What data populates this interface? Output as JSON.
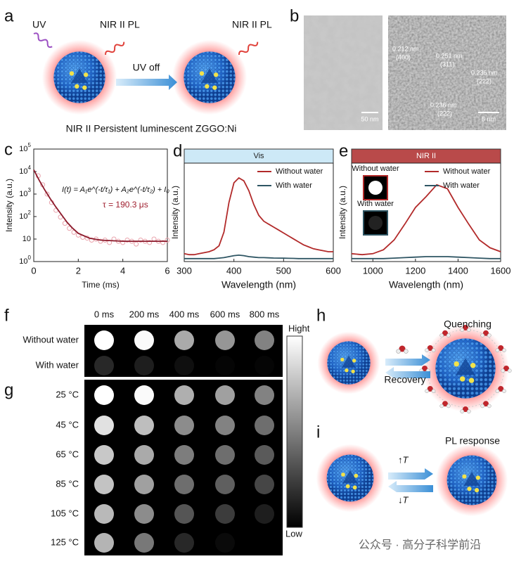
{
  "panels": {
    "a": {
      "label": "a",
      "uv": "UV",
      "pl_left": "NIR II PL",
      "pl_right": "NIR II PL",
      "uv_off": "UV off",
      "caption": "NIR II Persistent luminescent ZGGO:Ni"
    },
    "b": {
      "label": "b",
      "scale_left": "50 nm",
      "scale_right": "5 nm",
      "lattice": [
        "0.212 nm",
        "(400)",
        "0.251 nm",
        "(311)",
        "0.236 nm",
        "(222)",
        "0.236 nm",
        "(222)"
      ]
    },
    "f": {
      "label": "f",
      "columns": [
        "0 ms",
        "200 ms",
        "400 ms",
        "600 ms",
        "800 ms"
      ],
      "rows": [
        "Without water",
        "With water"
      ]
    },
    "g": {
      "label": "g",
      "rows": [
        "25 °C",
        "45 °C",
        "65 °C",
        "85 °C",
        "105 °C",
        "125 °C"
      ]
    },
    "colorbar": {
      "high": "Hight",
      "low": "Low"
    },
    "h": {
      "label": "h",
      "quenching": "Quenching",
      "recovery": "Recovery"
    },
    "i": {
      "label": "i",
      "response": "PL response",
      "up": "↑T",
      "down": "↓T"
    },
    "watermark": "公众号 · 高分子科学前沿"
  },
  "chart_data": [
    {
      "type": "line",
      "panel_label": "c",
      "ylabel": "Intensity (a.u.)",
      "xlabel": "Time (ms)",
      "formula": "I(t) = A₁e^(-t/τ₁) + A₂e^(-t/τ₂) + I₀",
      "annotation": "τ = 190.3 μs",
      "xlim": [
        0,
        6
      ],
      "xticks": [
        0,
        2,
        4,
        6
      ],
      "ylim": [
        1,
        100000
      ],
      "yscale": "log",
      "yticks": [
        {
          "value": 1,
          "label": "10^0"
        },
        10,
        {
          "value": 100,
          "label": "10^2"
        },
        {
          "value": 1000,
          "label": "10^3"
        },
        {
          "value": 10000,
          "label": "10^4"
        },
        {
          "value": 100000,
          "label": "10^5"
        }
      ],
      "series": [
        {
          "marker": "circle",
          "color": "#e9a3ac",
          "x": [
            0.2,
            0.4,
            0.6,
            0.8,
            1.0,
            1.2,
            1.4,
            1.6,
            1.8,
            2.0,
            2.2,
            2.4,
            2.6,
            2.8,
            3.0,
            3.2,
            3.4,
            3.6,
            3.8,
            4.0,
            4.2,
            4.4,
            4.6,
            4.8,
            5.0,
            5.2,
            5.4,
            5.6,
            5.8,
            6.0
          ],
          "values": [
            6500,
            2600,
            1000,
            420,
            190,
            95,
            50,
            30,
            20,
            15,
            12,
            11,
            9,
            10,
            8,
            9,
            7,
            10,
            8,
            7,
            9,
            8,
            6,
            9,
            8,
            7,
            10,
            8,
            7,
            9
          ]
        },
        {
          "marker": "line",
          "color": "#8b1a2b",
          "x": [
            0,
            0.25,
            0.5,
            0.75,
            1,
            1.25,
            1.5,
            1.75,
            2,
            2.5,
            3,
            4,
            5,
            6
          ],
          "values": [
            12000,
            4000,
            1500,
            600,
            260,
            120,
            55,
            30,
            18,
            11,
            9,
            8,
            8,
            8
          ]
        }
      ]
    },
    {
      "type": "line",
      "panel_label": "d",
      "header": "Vis",
      "header_color": "#cde9f7",
      "header_text_color": "#222",
      "ylabel": "Intensity (a.u.)",
      "xlabel": "Wavelength (nm)",
      "xlim": [
        300,
        600
      ],
      "xticks": [
        300,
        400,
        500,
        600
      ],
      "ylim": [
        0,
        1
      ],
      "x": [
        300,
        310,
        320,
        330,
        340,
        350,
        360,
        370,
        380,
        390,
        400,
        410,
        420,
        430,
        440,
        450,
        460,
        470,
        480,
        490,
        500,
        510,
        520,
        530,
        540,
        550,
        560,
        570,
        580,
        590,
        600
      ],
      "series": [
        {
          "name": "Without water",
          "color": "#b22a2a",
          "values": [
            0.08,
            0.07,
            0.07,
            0.08,
            0.09,
            0.1,
            0.12,
            0.16,
            0.3,
            0.6,
            0.8,
            0.85,
            0.82,
            0.72,
            0.58,
            0.47,
            0.41,
            0.38,
            0.35,
            0.32,
            0.29,
            0.26,
            0.23,
            0.2,
            0.17,
            0.15,
            0.13,
            0.12,
            0.11,
            0.1,
            0.1
          ]
        },
        {
          "name": "With water",
          "color": "#2e5563",
          "values": [
            0.03,
            0.03,
            0.03,
            0.03,
            0.03,
            0.03,
            0.03,
            0.035,
            0.04,
            0.05,
            0.06,
            0.065,
            0.06,
            0.05,
            0.045,
            0.04,
            0.04,
            0.038,
            0.036,
            0.035,
            0.034,
            0.033,
            0.032,
            0.03,
            0.03,
            0.03,
            0.03,
            0.03,
            0.03,
            0.03,
            0.03
          ]
        }
      ]
    },
    {
      "type": "line",
      "panel_label": "e",
      "header": "NIR II",
      "header_color": "#b94a4a",
      "header_text_color": "#fff",
      "ylabel": "Intensity (a.u.)",
      "xlabel": "Wavelength (nm)",
      "xlim": [
        900,
        1600
      ],
      "xticks": [
        1000,
        1200,
        1400,
        1600
      ],
      "ylim": [
        0,
        1
      ],
      "insets": [
        "Without water",
        "With water"
      ],
      "x": [
        900,
        950,
        1000,
        1050,
        1100,
        1150,
        1200,
        1250,
        1300,
        1350,
        1400,
        1450,
        1500,
        1550,
        1600
      ],
      "series": [
        {
          "name": "Without water",
          "color": "#b22a2a",
          "values": [
            0.08,
            0.07,
            0.08,
            0.12,
            0.22,
            0.38,
            0.55,
            0.66,
            0.78,
            0.74,
            0.55,
            0.38,
            0.22,
            0.14,
            0.1
          ]
        },
        {
          "name": "With water",
          "color": "#2e5563",
          "values": [
            0.03,
            0.03,
            0.03,
            0.03,
            0.035,
            0.04,
            0.045,
            0.05,
            0.05,
            0.05,
            0.045,
            0.04,
            0.035,
            0.03,
            0.03
          ]
        }
      ]
    }
  ]
}
